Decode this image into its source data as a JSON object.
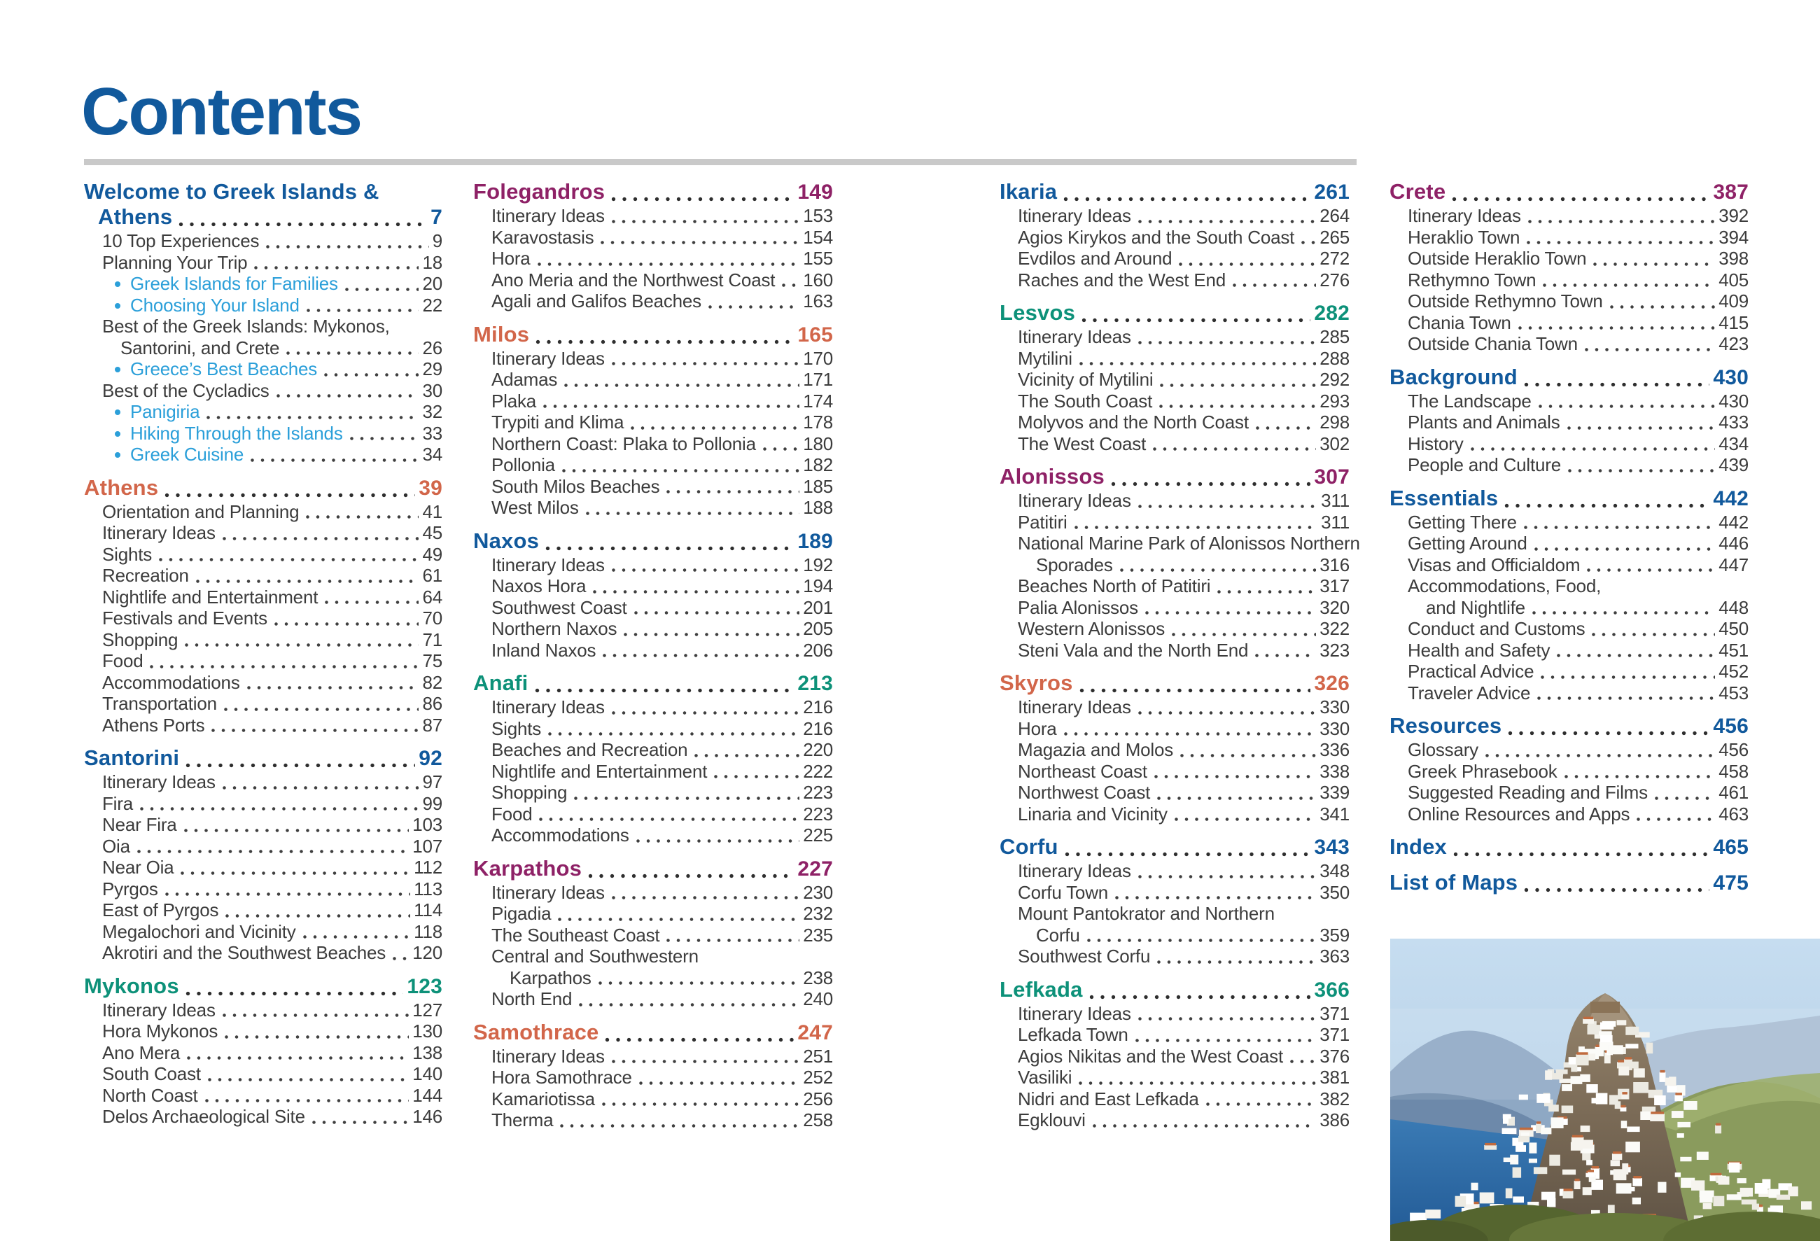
{
  "page": {
    "title": "Contents"
  },
  "colors": {
    "blue": "#11599c",
    "orange": "#d2664a",
    "teal": "#0d9179",
    "purple": "#8e2166",
    "bullet_blue": "#2b9fd9",
    "body_text": "#3c3c3c",
    "rule_gray": "#c9c9c9"
  },
  "photo": {
    "name": "island-hilltop-village-photo",
    "description": "Whitewashed Greek island village climbing a rocky hill above a blue sea, mountains behind"
  },
  "columns": [
    {
      "sections": [
        {
          "color": "blue",
          "title_lines": [
            "Welcome to Greek Islands &",
            "Athens"
          ],
          "page": "7",
          "items": [
            {
              "label": "10 Top Experiences",
              "page": "9"
            },
            {
              "label": "Planning Your Trip",
              "page": "18"
            },
            {
              "label": "Greek Islands for Families",
              "page": "20",
              "bullet": true
            },
            {
              "label": "Choosing Your Island",
              "page": "22",
              "bullet": true
            },
            {
              "label": "Best of the Greek Islands: Mykonos,",
              "page": null
            },
            {
              "label": "Santorini, and Crete",
              "page": "26",
              "cont": true
            },
            {
              "label": "Greece’s Best Beaches",
              "page": "29",
              "bullet": true
            },
            {
              "label": "Best of the Cycladics",
              "page": "30"
            },
            {
              "label": "Panigiria",
              "page": "32",
              "bullet": true
            },
            {
              "label": "Hiking Through the Islands",
              "page": "33",
              "bullet": true
            },
            {
              "label": "Greek Cuisine",
              "page": "34",
              "bullet": true
            }
          ]
        },
        {
          "color": "orange",
          "title_lines": [
            "Athens"
          ],
          "page": "39",
          "items": [
            {
              "label": "Orientation and Planning",
              "page": "41"
            },
            {
              "label": "Itinerary Ideas",
              "page": "45"
            },
            {
              "label": "Sights",
              "page": "49"
            },
            {
              "label": "Recreation",
              "page": "61"
            },
            {
              "label": "Nightlife and Entertainment",
              "page": "64"
            },
            {
              "label": "Festivals and Events",
              "page": "70"
            },
            {
              "label": "Shopping",
              "page": "71"
            },
            {
              "label": "Food",
              "page": "75"
            },
            {
              "label": "Accommodations",
              "page": "82"
            },
            {
              "label": "Transportation",
              "page": "86"
            },
            {
              "label": "Athens Ports",
              "page": "87"
            }
          ]
        },
        {
          "color": "blue",
          "title_lines": [
            "Santorini"
          ],
          "page": "92",
          "items": [
            {
              "label": "Itinerary Ideas",
              "page": "97"
            },
            {
              "label": "Fira",
              "page": "99"
            },
            {
              "label": "Near Fira",
              "page": "103"
            },
            {
              "label": "Oia",
              "page": "107"
            },
            {
              "label": "Near Oia",
              "page": "112"
            },
            {
              "label": "Pyrgos",
              "page": "113"
            },
            {
              "label": "East of Pyrgos",
              "page": "114"
            },
            {
              "label": "Megalochori and Vicinity",
              "page": "118"
            },
            {
              "label": "Akrotiri and the Southwest Beaches",
              "page": "120"
            }
          ]
        },
        {
          "color": "teal",
          "title_lines": [
            "Mykonos"
          ],
          "page": "123",
          "items": [
            {
              "label": "Itinerary Ideas",
              "page": "127"
            },
            {
              "label": "Hora Mykonos",
              "page": "130"
            },
            {
              "label": "Ano Mera",
              "page": "138"
            },
            {
              "label": "South Coast",
              "page": "140"
            },
            {
              "label": "North Coast",
              "page": "144"
            },
            {
              "label": "Delos Archaeological Site",
              "page": "146"
            }
          ]
        }
      ]
    },
    {
      "sections": [
        {
          "color": "purple",
          "title_lines": [
            "Folegandros"
          ],
          "page": "149",
          "items": [
            {
              "label": "Itinerary Ideas",
              "page": "153"
            },
            {
              "label": "Karavostasis",
              "page": "154"
            },
            {
              "label": "Hora",
              "page": "155"
            },
            {
              "label": "Ano Meria and the Northwest Coast",
              "page": "160"
            },
            {
              "label": "Agali and Galifos Beaches",
              "page": "163"
            }
          ]
        },
        {
          "color": "orange",
          "title_lines": [
            "Milos"
          ],
          "page": "165",
          "items": [
            {
              "label": "Itinerary Ideas",
              "page": "170"
            },
            {
              "label": "Adamas",
              "page": "171"
            },
            {
              "label": "Plaka",
              "page": "174"
            },
            {
              "label": "Trypiti and Klima",
              "page": "178"
            },
            {
              "label": "Northern Coast: Plaka to Pollonia",
              "page": "180"
            },
            {
              "label": "Pollonia",
              "page": "182"
            },
            {
              "label": "South Milos Beaches",
              "page": "185"
            },
            {
              "label": "West Milos",
              "page": "188"
            }
          ]
        },
        {
          "color": "blue",
          "title_lines": [
            "Naxos"
          ],
          "page": "189",
          "items": [
            {
              "label": "Itinerary Ideas",
              "page": "192"
            },
            {
              "label": "Naxos Hora",
              "page": "194"
            },
            {
              "label": "Southwest Coast",
              "page": "201"
            },
            {
              "label": "Northern Naxos",
              "page": "205"
            },
            {
              "label": "Inland Naxos",
              "page": "206"
            }
          ]
        },
        {
          "color": "teal",
          "title_lines": [
            "Anafi"
          ],
          "page": "213",
          "items": [
            {
              "label": "Itinerary Ideas",
              "page": "216"
            },
            {
              "label": "Sights",
              "page": "216"
            },
            {
              "label": "Beaches and Recreation",
              "page": "220"
            },
            {
              "label": "Nightlife and Entertainment",
              "page": "222"
            },
            {
              "label": "Shopping",
              "page": "223"
            },
            {
              "label": "Food",
              "page": "223"
            },
            {
              "label": "Accommodations",
              "page": "225"
            }
          ]
        },
        {
          "color": "purple",
          "title_lines": [
            "Karpathos"
          ],
          "page": "227",
          "items": [
            {
              "label": "Itinerary Ideas",
              "page": "230"
            },
            {
              "label": "Pigadia",
              "page": "232"
            },
            {
              "label": "The Southeast Coast",
              "page": "235"
            },
            {
              "label": "Central and Southwestern",
              "page": null
            },
            {
              "label": "Karpathos",
              "page": "238",
              "cont": true
            },
            {
              "label": "North End",
              "page": "240"
            }
          ]
        },
        {
          "color": "orange",
          "title_lines": [
            "Samothrace"
          ],
          "page": "247",
          "items": [
            {
              "label": "Itinerary Ideas",
              "page": "251"
            },
            {
              "label": "Hora Samothrace",
              "page": "252"
            },
            {
              "label": "Kamariotissa",
              "page": "256"
            },
            {
              "label": "Therma",
              "page": "258"
            }
          ]
        }
      ]
    },
    {
      "sections": [
        {
          "color": "blue",
          "title_lines": [
            "Ikaria"
          ],
          "page": "261",
          "items": [
            {
              "label": "Itinerary Ideas",
              "page": "264"
            },
            {
              "label": "Agios Kirykos and the South Coast",
              "page": "265"
            },
            {
              "label": "Evdilos and Around",
              "page": "272"
            },
            {
              "label": "Raches and the West End",
              "page": "276"
            }
          ]
        },
        {
          "color": "teal",
          "title_lines": [
            "Lesvos"
          ],
          "page": "282",
          "items": [
            {
              "label": "Itinerary Ideas",
              "page": "285"
            },
            {
              "label": "Mytilini",
              "page": "288"
            },
            {
              "label": "Vicinity of Mytilini",
              "page": "292"
            },
            {
              "label": "The South Coast",
              "page": "293"
            },
            {
              "label": "Molyvos and the North Coast",
              "page": "298"
            },
            {
              "label": "The West Coast",
              "page": "302"
            }
          ]
        },
        {
          "color": "purple",
          "title_lines": [
            "Alonissos"
          ],
          "page": "307",
          "items": [
            {
              "label": "Itinerary Ideas",
              "page": "311"
            },
            {
              "label": "Patitiri",
              "page": "311"
            },
            {
              "label": "National Marine Park of Alonissos Northern",
              "page": null
            },
            {
              "label": "Sporades",
              "page": "316",
              "cont": true
            },
            {
              "label": "Beaches North of Patitiri",
              "page": "317"
            },
            {
              "label": "Palia Alonissos",
              "page": "320"
            },
            {
              "label": "Western Alonissos",
              "page": "322"
            },
            {
              "label": "Steni Vala and the North End",
              "page": "323"
            }
          ]
        },
        {
          "color": "orange",
          "title_lines": [
            "Skyros"
          ],
          "page": "326",
          "items": [
            {
              "label": "Itinerary Ideas",
              "page": "330"
            },
            {
              "label": "Hora",
              "page": "330"
            },
            {
              "label": "Magazia and Molos",
              "page": "336"
            },
            {
              "label": "Northeast Coast",
              "page": "338"
            },
            {
              "label": "Northwest Coast",
              "page": "339"
            },
            {
              "label": "Linaria and Vicinity",
              "page": "341"
            }
          ]
        },
        {
          "color": "blue",
          "title_lines": [
            "Corfu"
          ],
          "page": "343",
          "items": [
            {
              "label": "Itinerary Ideas",
              "page": "348"
            },
            {
              "label": "Corfu Town",
              "page": "350"
            },
            {
              "label": "Mount Pantokrator and Northern",
              "page": null
            },
            {
              "label": "Corfu",
              "page": "359",
              "cont": true
            },
            {
              "label": "Southwest Corfu",
              "page": "363"
            }
          ]
        },
        {
          "color": "teal",
          "title_lines": [
            "Lefkada"
          ],
          "page": "366",
          "items": [
            {
              "label": "Itinerary Ideas",
              "page": "371"
            },
            {
              "label": "Lefkada Town",
              "page": "371"
            },
            {
              "label": "Agios Nikitas and the West Coast",
              "page": "376"
            },
            {
              "label": "Vasiliki",
              "page": "381"
            },
            {
              "label": "Nidri and East Lefkada",
              "page": "382"
            },
            {
              "label": "Egklouvi",
              "page": "386"
            }
          ]
        }
      ]
    },
    {
      "sections": [
        {
          "color": "purple",
          "title_lines": [
            "Crete"
          ],
          "page": "387",
          "items": [
            {
              "label": "Itinerary Ideas",
              "page": "392"
            },
            {
              "label": "Heraklio Town",
              "page": "394"
            },
            {
              "label": "Outside Heraklio Town",
              "page": "398"
            },
            {
              "label": "Rethymno Town",
              "page": "405"
            },
            {
              "label": "Outside Rethymno Town",
              "page": "409"
            },
            {
              "label": "Chania Town",
              "page": "415"
            },
            {
              "label": "Outside Chania Town",
              "page": "423"
            }
          ]
        },
        {
          "color": "blue",
          "title_lines": [
            "Background"
          ],
          "page": "430",
          "items": [
            {
              "label": "The Landscape",
              "page": "430"
            },
            {
              "label": "Plants and Animals",
              "page": "433"
            },
            {
              "label": "History",
              "page": "434"
            },
            {
              "label": "People and Culture",
              "page": "439"
            }
          ]
        },
        {
          "color": "blue",
          "title_lines": [
            "Essentials"
          ],
          "page": "442",
          "items": [
            {
              "label": "Getting There",
              "page": "442"
            },
            {
              "label": "Getting Around",
              "page": "446"
            },
            {
              "label": "Visas and Officialdom",
              "page": "447"
            },
            {
              "label": "Accommodations, Food,",
              "page": null
            },
            {
              "label": "and Nightlife",
              "page": "448",
              "cont": true
            },
            {
              "label": "Conduct and Customs",
              "page": "450"
            },
            {
              "label": "Health and Safety",
              "page": "451"
            },
            {
              "label": "Practical Advice",
              "page": "452"
            },
            {
              "label": "Traveler Advice",
              "page": "453"
            }
          ]
        },
        {
          "color": "blue",
          "title_lines": [
            "Resources"
          ],
          "page": "456",
          "items": [
            {
              "label": "Glossary",
              "page": "456"
            },
            {
              "label": "Greek Phrasebook",
              "page": "458"
            },
            {
              "label": "Suggested Reading and Films",
              "page": "461"
            },
            {
              "label": "Online Resources and Apps",
              "page": "463"
            }
          ]
        },
        {
          "color": "blue",
          "title_lines": [
            "Index"
          ],
          "page": "465",
          "items": []
        },
        {
          "color": "blue",
          "title_lines": [
            "List of Maps"
          ],
          "page": "475",
          "items": []
        }
      ]
    }
  ]
}
